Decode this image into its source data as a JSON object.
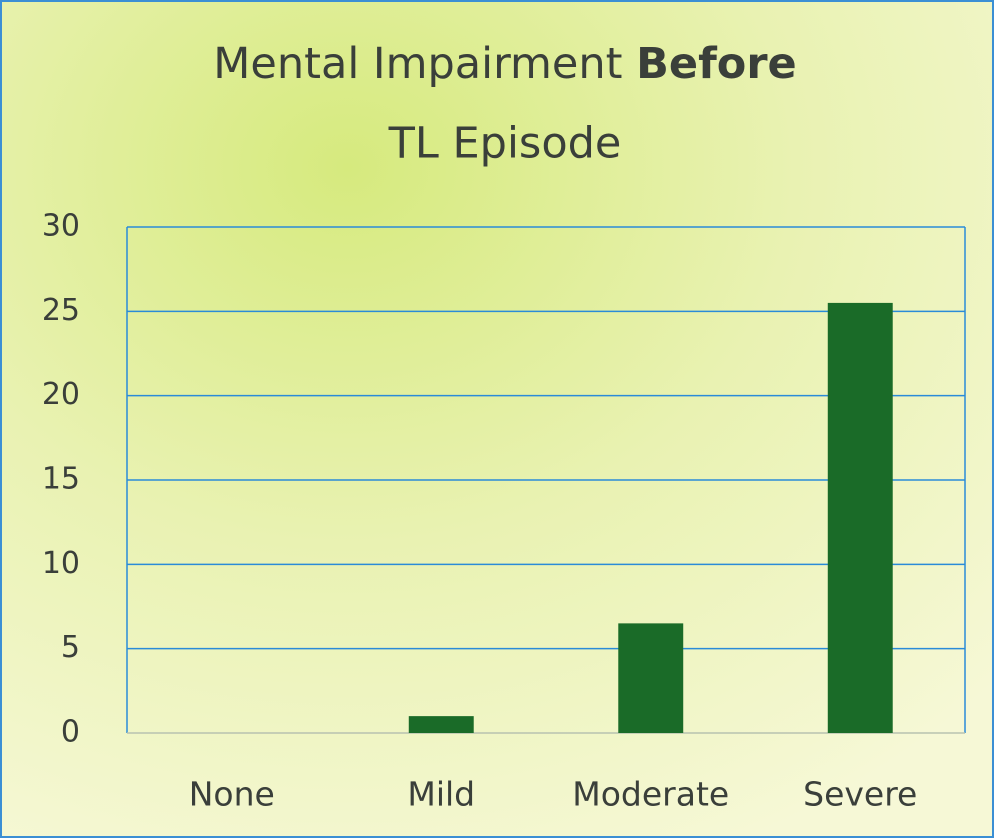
{
  "chart_data": {
    "type": "bar",
    "title": [
      "Mental Impairment",
      "Before",
      "TL Episode"
    ],
    "categories": [
      "None",
      "Mild",
      "Moderate",
      "Severe"
    ],
    "values": [
      0,
      1,
      6.5,
      25.5
    ],
    "color": "#1a6b28",
    "ylim": [
      0,
      30
    ],
    "yticks": [
      0,
      5,
      10,
      15,
      20,
      25,
      30
    ],
    "grid": true
  }
}
